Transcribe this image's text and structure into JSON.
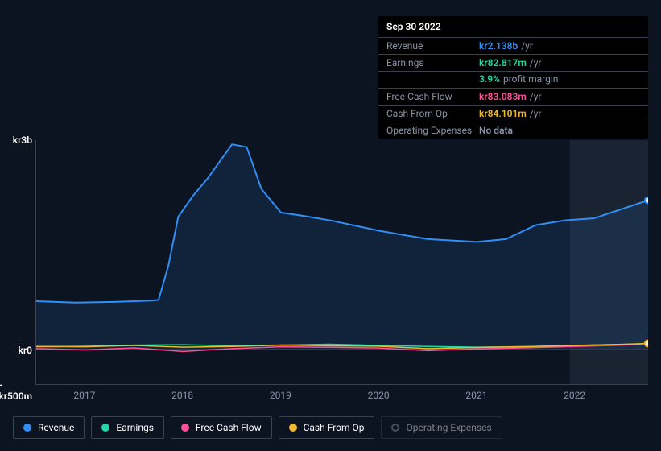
{
  "tooltip": {
    "title": "Sep 30 2022",
    "rows": [
      {
        "label": "Revenue",
        "value": "kr2.138b",
        "unit": "/yr",
        "color": "#2f8ff7"
      },
      {
        "label": "Earnings",
        "value": "kr82.817m",
        "unit": "/yr",
        "color": "#1fd8a4",
        "sub_value": "3.9%",
        "sub_label": "profit margin"
      },
      {
        "label": "Free Cash Flow",
        "value": "kr83.083m",
        "unit": "/yr",
        "color": "#ff4f9a"
      },
      {
        "label": "Cash From Op",
        "value": "kr84.101m",
        "unit": "/yr",
        "color": "#efb92d"
      },
      {
        "label": "Operating Expenses",
        "value": "No data",
        "unit": "",
        "color": "#8a93a6"
      }
    ]
  },
  "chart": {
    "type": "area-line",
    "background_color": "#0d1421",
    "highlight_band_color": "#1a2332",
    "grid_color": "#3a4252",
    "ylim": [
      -500,
      3000
    ],
    "yticks": [
      {
        "v": 3000,
        "label": "kr3b"
      },
      {
        "v": 0,
        "label": "kr0"
      },
      {
        "v": -500,
        "label": "-kr500m"
      }
    ],
    "xlim": [
      2016.5,
      2022.75
    ],
    "xticks": [
      {
        "v": 2017,
        "label": "2017"
      },
      {
        "v": 2018,
        "label": "2018"
      },
      {
        "v": 2019,
        "label": "2019"
      },
      {
        "v": 2020,
        "label": "2020"
      },
      {
        "v": 2021,
        "label": "2021"
      },
      {
        "v": 2022,
        "label": "2022"
      }
    ],
    "highlight_from": 2021.95,
    "series": {
      "revenue": {
        "name": "Revenue",
        "color": "#2f8ff7",
        "fill": "rgba(47,143,247,0.12)",
        "area": true,
        "line_width": 2,
        "points": [
          [
            2016.5,
            690
          ],
          [
            2016.9,
            670
          ],
          [
            2017.3,
            680
          ],
          [
            2017.7,
            700
          ],
          [
            2017.75,
            710
          ],
          [
            2017.85,
            1200
          ],
          [
            2017.95,
            1900
          ],
          [
            2018.1,
            2200
          ],
          [
            2018.25,
            2450
          ],
          [
            2018.5,
            2940
          ],
          [
            2018.65,
            2900
          ],
          [
            2018.8,
            2300
          ],
          [
            2019.0,
            1960
          ],
          [
            2019.2,
            1920
          ],
          [
            2019.5,
            1850
          ],
          [
            2020.0,
            1700
          ],
          [
            2020.5,
            1580
          ],
          [
            2021.0,
            1540
          ],
          [
            2021.3,
            1580
          ],
          [
            2021.6,
            1780
          ],
          [
            2021.9,
            1850
          ],
          [
            2022.2,
            1880
          ],
          [
            2022.5,
            2020
          ],
          [
            2022.75,
            2138
          ]
        ]
      },
      "earnings": {
        "name": "Earnings",
        "color": "#1fd8a4",
        "line_width": 1.5,
        "points": [
          [
            2016.5,
            35
          ],
          [
            2017.0,
            42
          ],
          [
            2017.5,
            60
          ],
          [
            2018.0,
            65
          ],
          [
            2018.5,
            48
          ],
          [
            2019.0,
            60
          ],
          [
            2019.5,
            72
          ],
          [
            2020.0,
            55
          ],
          [
            2020.5,
            40
          ],
          [
            2021.0,
            30
          ],
          [
            2021.5,
            38
          ],
          [
            2022.0,
            55
          ],
          [
            2022.5,
            70
          ],
          [
            2022.75,
            83
          ]
        ]
      },
      "fcf": {
        "name": "Free Cash Flow",
        "color": "#ff4f9a",
        "line_width": 1.5,
        "points": [
          [
            2016.5,
            10
          ],
          [
            2017.0,
            -10
          ],
          [
            2017.5,
            20
          ],
          [
            2018.0,
            -30
          ],
          [
            2018.5,
            10
          ],
          [
            2019.0,
            35
          ],
          [
            2019.5,
            28
          ],
          [
            2020.0,
            18
          ],
          [
            2020.5,
            -20
          ],
          [
            2021.0,
            5
          ],
          [
            2021.5,
            22
          ],
          [
            2022.0,
            40
          ],
          [
            2022.5,
            60
          ],
          [
            2022.75,
            83
          ]
        ]
      },
      "cfo": {
        "name": "Cash From Op",
        "color": "#efb92d",
        "line_width": 1.5,
        "points": [
          [
            2016.5,
            40
          ],
          [
            2017.0,
            35
          ],
          [
            2017.5,
            55
          ],
          [
            2018.0,
            30
          ],
          [
            2018.5,
            40
          ],
          [
            2019.0,
            58
          ],
          [
            2019.5,
            50
          ],
          [
            2020.0,
            42
          ],
          [
            2020.5,
            10
          ],
          [
            2021.0,
            25
          ],
          [
            2021.5,
            38
          ],
          [
            2022.0,
            55
          ],
          [
            2022.5,
            70
          ],
          [
            2022.75,
            84
          ]
        ]
      }
    }
  },
  "legend": [
    {
      "key": "revenue",
      "label": "Revenue",
      "color": "#2f8ff7",
      "active": true
    },
    {
      "key": "earnings",
      "label": "Earnings",
      "color": "#1fd8a4",
      "active": true
    },
    {
      "key": "fcf",
      "label": "Free Cash Flow",
      "color": "#ff4f9a",
      "active": true
    },
    {
      "key": "cfo",
      "label": "Cash From Op",
      "color": "#efb92d",
      "active": true
    },
    {
      "key": "opex",
      "label": "Operating Expenses",
      "color": "#8a93a6",
      "active": false,
      "ring": true
    }
  ]
}
